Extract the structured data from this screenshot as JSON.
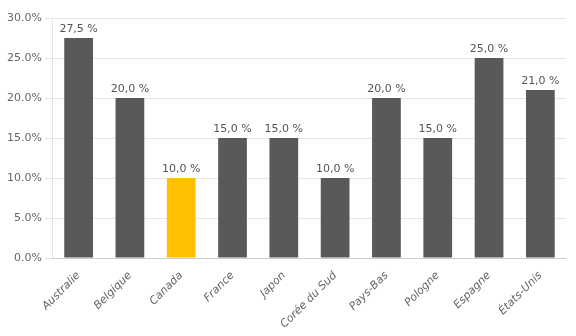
{
  "chart_data": {
    "type": "bar",
    "categories": [
      "Australie",
      "Belgique",
      "Canada",
      "France",
      "Japon",
      "Corée du Sud",
      "Pays-Bas",
      "Pologne",
      "Espagne",
      "États-Unis"
    ],
    "values": [
      0.275,
      0.2,
      0.1,
      0.15,
      0.15,
      0.1,
      0.2,
      0.15,
      0.25,
      0.21
    ],
    "value_labels": [
      "27,5 %",
      "20,0 %",
      "10,0 %",
      "15,0 %",
      "15,0 %",
      "10,0 %",
      "20,0 %",
      "15,0 %",
      "25,0 %",
      "21,0 %"
    ],
    "colors": [
      "#595959",
      "#595959",
      "#FFC000",
      "#595959",
      "#595959",
      "#595959",
      "#595959",
      "#595959",
      "#595959",
      "#595959"
    ],
    "data_labels": true,
    "ylim": [
      0,
      0.3
    ],
    "yticks": [
      {
        "value": 0.0,
        "label": "0.0%"
      },
      {
        "value": 0.05,
        "label": "5.0%"
      },
      {
        "value": 0.1,
        "label": "10.0%"
      },
      {
        "value": 0.15,
        "label": "15.0%"
      },
      {
        "value": 0.2,
        "label": "20.0%"
      },
      {
        "value": 0.25,
        "label": "25.0%"
      },
      {
        "value": 0.3,
        "label": "30.0%"
      }
    ],
    "grid": true
  }
}
